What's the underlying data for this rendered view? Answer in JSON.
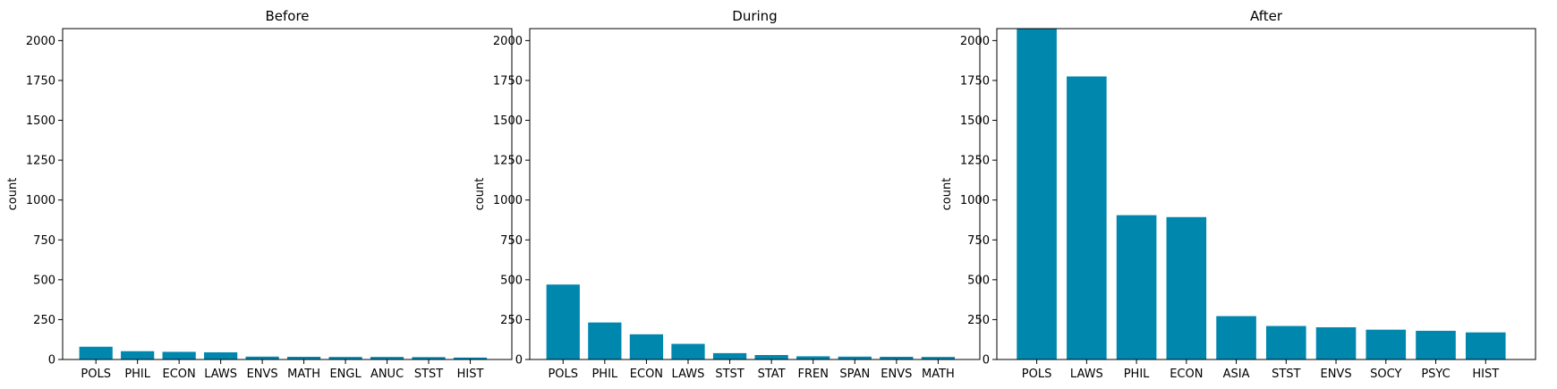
{
  "chart_data": [
    {
      "type": "bar",
      "title": "Before",
      "xlabel": "",
      "ylabel": "count",
      "ylim": [
        0,
        2075
      ],
      "yticks": [
        0,
        250,
        500,
        750,
        1000,
        1250,
        1500,
        1750,
        2000
      ],
      "categories": [
        "POLS",
        "PHIL",
        "ECON",
        "LAWS",
        "ENVS",
        "MATH",
        "ENGL",
        "ANUC",
        "STST",
        "HIST"
      ],
      "values": [
        80,
        52,
        48,
        45,
        18,
        17,
        16,
        16,
        15,
        12
      ],
      "color": "#0087ae",
      "grid": false
    },
    {
      "type": "bar",
      "title": "During",
      "xlabel": "",
      "ylabel": "count",
      "ylim": [
        0,
        2075
      ],
      "yticks": [
        0,
        250,
        500,
        750,
        1000,
        1250,
        1500,
        1750,
        2000
      ],
      "categories": [
        "POLS",
        "PHIL",
        "ECON",
        "LAWS",
        "STST",
        "STAT",
        "FREN",
        "SPAN",
        "ENVS",
        "MATH"
      ],
      "values": [
        470,
        232,
        158,
        98,
        40,
        28,
        20,
        18,
        17,
        16
      ],
      "color": "#0087ae",
      "grid": false
    },
    {
      "type": "bar",
      "title": "After",
      "xlabel": "",
      "ylabel": "count",
      "ylim": [
        0,
        2075
      ],
      "yticks": [
        0,
        250,
        500,
        750,
        1000,
        1250,
        1500,
        1750,
        2000
      ],
      "categories": [
        "POLS",
        "LAWS",
        "PHIL",
        "ECON",
        "ASIA",
        "STST",
        "ENVS",
        "SOCY",
        "PSYC",
        "HIST"
      ],
      "values": [
        2075,
        1775,
        905,
        893,
        272,
        210,
        202,
        187,
        180,
        170
      ],
      "color": "#0087ae",
      "grid": false
    }
  ]
}
